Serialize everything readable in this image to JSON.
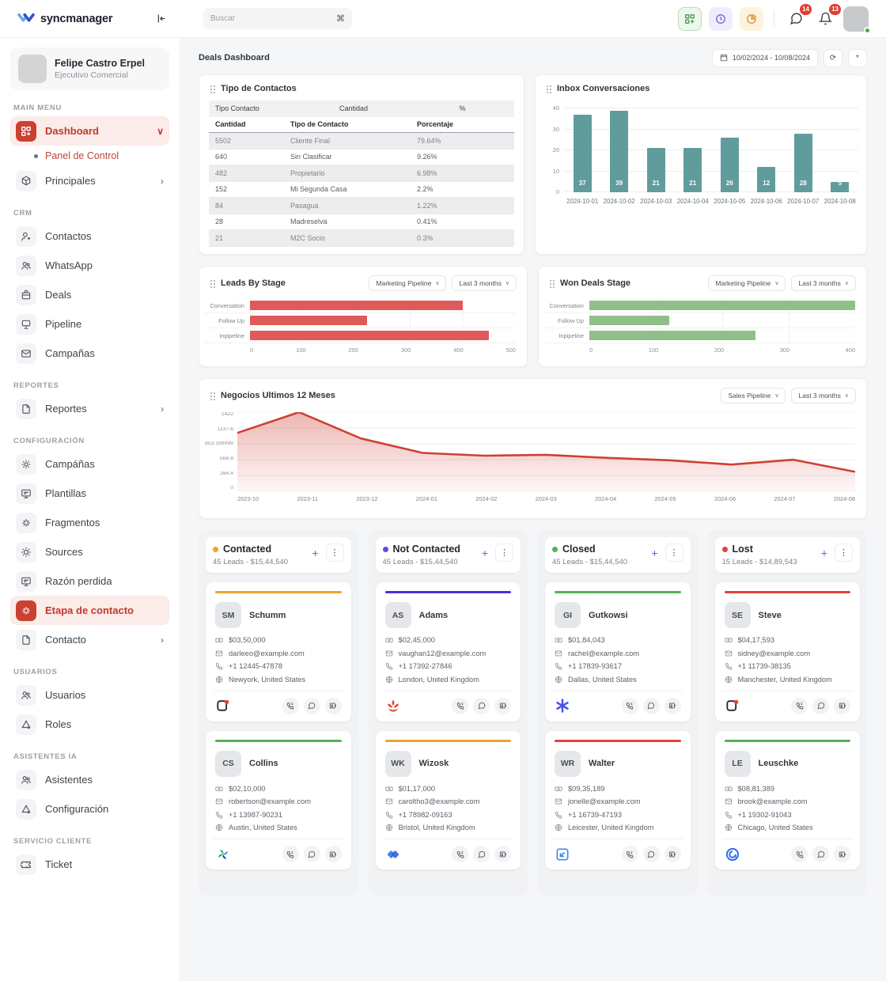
{
  "brand": {
    "name": "syncmanager"
  },
  "topbar": {
    "search": {
      "placeholder": "Buscar",
      "shortcut": "⌘"
    },
    "chat_badge": "14",
    "bell_badge": "13"
  },
  "user": {
    "name": "Felipe Castro Erpel",
    "role": "Ejecutivo Comercial"
  },
  "sidebar": {
    "sections": [
      {
        "label": "MAIN MENU",
        "items": [
          {
            "label": "Dashboard",
            "icon": "dashboard-icon",
            "active": true,
            "chevron": "∨"
          },
          {
            "label": "Panel de Control",
            "sub": true
          },
          {
            "label": "Principales",
            "icon": "cube-icon",
            "chevron": "›"
          }
        ]
      },
      {
        "label": "CRM",
        "items": [
          {
            "label": "Contactos",
            "icon": "user-plus-icon"
          },
          {
            "label": "WhatsApp",
            "icon": "users-icon"
          },
          {
            "label": "Deals",
            "icon": "deals-icon"
          },
          {
            "label": "Pipeline",
            "icon": "pipeline-icon"
          },
          {
            "label": "Campañas",
            "icon": "mail-icon"
          }
        ]
      },
      {
        "label": "REPORTES",
        "items": [
          {
            "label": "Reportes",
            "icon": "file-icon",
            "chevron": "›"
          }
        ]
      },
      {
        "label": "CONFIGURACIÓN",
        "items": [
          {
            "label": "Campáñas",
            "icon": "spark-icon"
          },
          {
            "label": "Plantillas",
            "icon": "template-icon"
          },
          {
            "label": "Fragmentos",
            "icon": "fragments-icon"
          },
          {
            "label": "Sources",
            "icon": "source-icon"
          },
          {
            "label": "Razón perdida",
            "icon": "template-icon"
          },
          {
            "label": "Etapa de contacto",
            "icon": "fragments-icon",
            "active": true
          },
          {
            "label": "Contacto",
            "icon": "file-icon",
            "chevron": "›"
          }
        ]
      },
      {
        "label": "USUARIOS",
        "items": [
          {
            "label": "Usuarios",
            "icon": "users-icon"
          },
          {
            "label": "Roles",
            "icon": "roles-icon"
          }
        ]
      },
      {
        "label": "ASISTENTES IA",
        "items": [
          {
            "label": "Asistentes",
            "icon": "users-icon"
          },
          {
            "label": "Configuración",
            "icon": "roles-icon"
          }
        ]
      },
      {
        "label": "SERVICIO CLIENTE",
        "items": [
          {
            "label": "Ticket",
            "icon": "ticket-icon"
          }
        ]
      }
    ]
  },
  "page": {
    "title": "Deals Dashboard",
    "date_range": "10/02/2024 - 10/08/2024",
    "refresh_glyph": "⟳",
    "extra_glyph": "*"
  },
  "contact_types": {
    "title": "Tipo de Contactos",
    "outer_headers": [
      "Tipo Contacto",
      "Cantidad",
      "%"
    ],
    "headers": [
      "Cantidad",
      "Tipo de Contacto",
      "Porcentaje"
    ],
    "rows": [
      [
        "5502",
        "Cliente Final",
        "79.64%"
      ],
      [
        "640",
        "Sin Clasificar",
        "9.26%"
      ],
      [
        "482",
        "Propietario",
        "6.98%"
      ],
      [
        "152",
        "Mi Segunda Casa",
        "2.2%"
      ],
      [
        "84",
        "Pasagua",
        "1.22%"
      ],
      [
        "28",
        "Madreselva",
        "0.41%"
      ],
      [
        "21",
        "M2C Socio",
        "0.3%"
      ]
    ]
  },
  "chart_data": [
    {
      "id": "inbox",
      "type": "bar",
      "title": "Inbox Conversaciones",
      "categories": [
        "2024-10-01",
        "2024-10-02",
        "2024-10-03",
        "2024-10-04",
        "2024-10-05",
        "2024-10-06",
        "2024-10-07",
        "2024-10-08"
      ],
      "values": [
        37,
        39,
        21,
        21,
        26,
        12,
        28,
        5
      ],
      "ylim": [
        0,
        40
      ],
      "yticks": [
        0,
        10,
        20,
        30,
        40
      ],
      "color": "#619c9d",
      "grid": true,
      "legend": "none"
    },
    {
      "id": "leads",
      "type": "bar",
      "orientation": "horizontal",
      "title": "Leads By Stage",
      "filters": [
        "Marketing Pipeline",
        "Last 3 months"
      ],
      "categories": [
        "Conversation",
        "Follow Up",
        "Inpipeline"
      ],
      "values": [
        400,
        220,
        450
      ],
      "xlim": [
        0,
        500
      ],
      "xticks": [
        0,
        100,
        200,
        300,
        400,
        500
      ],
      "color": "#e05a5a",
      "grid": true,
      "legend": "none"
    },
    {
      "id": "won",
      "type": "bar",
      "orientation": "horizontal",
      "title": "Won Deals Stage",
      "filters": [
        "Marketing Pipeline",
        "Last 3 months"
      ],
      "categories": [
        "Conversation",
        "Follow Up",
        "Inpipeline"
      ],
      "values": [
        400,
        120,
        250
      ],
      "xlim": [
        0,
        400
      ],
      "xticks": [
        0,
        100,
        200,
        300,
        400
      ],
      "color": "#90bf89",
      "grid": true,
      "legend": "none"
    },
    {
      "id": "negocios",
      "type": "area",
      "title": "Negocios Ultimos 12 Meses",
      "filters": [
        "Sales Pipeline",
        "Last 3 months"
      ],
      "x": [
        "2023-10",
        "2023-11",
        "2023-12",
        "2024-01",
        "2024-02",
        "2024-03",
        "2024-04",
        "2024-05",
        "2024-06",
        "2024-07",
        "2024-08"
      ],
      "values": [
        1050,
        1422,
        950,
        690,
        640,
        655,
        600,
        558,
        480,
        568,
        350
      ],
      "ylim": [
        0,
        1422
      ],
      "ytick_labels_top_to_bottom": [
        "1422",
        "1137.6",
        "853.1999999999999",
        "568.8",
        "284.4",
        "0"
      ],
      "color": "#cf4033",
      "grid": true,
      "legend": "none"
    }
  ],
  "kanban": {
    "add_label": "+",
    "menu_label": "⋮",
    "columns": [
      {
        "name": "Contacted",
        "dot_color": "#efa32f",
        "summary": "45 Leads - $15,44,540",
        "cards": [
          {
            "bar_color": "#efa32f",
            "initials": "SM",
            "name": "Schumm",
            "amount": "$03,50,000",
            "email": "darleeo@example.com",
            "phone": "+1 12445-47878",
            "location": "Newyork, United States",
            "brand_icon": "copy-red-dot-icon"
          },
          {
            "bar_color": "#54b158",
            "initials": "CS",
            "name": "Collins",
            "amount": "$02,10,000",
            "email": "robertson@example.com",
            "phone": "+1 13987-90231",
            "location": "Austin, United States",
            "brand_icon": "pinwheel-icon"
          }
        ]
      },
      {
        "name": "Not Contacted",
        "dot_color": "#5a4fe0",
        "summary": "45 Leads - $15,44,540",
        "cards": [
          {
            "bar_color": "#4b2ee3",
            "initials": "AS",
            "name": "Adams",
            "amount": "$02,45,000",
            "email": "vaughan12@example.com",
            "phone": "+1 17392-27846",
            "location": "London, United Kingdom",
            "brand_icon": "red-lotus-icon"
          },
          {
            "bar_color": "#efa32f",
            "initials": "WK",
            "name": "Wizosk",
            "amount": "$01,17,000",
            "email": "caroltho3@example.com",
            "phone": "+1 78982-09163",
            "location": "Bristol, United Kingdom",
            "brand_icon": "blue-diamond-icon"
          }
        ]
      },
      {
        "name": "Closed",
        "dot_color": "#54b158",
        "summary": "45 Leads - $15,44,540",
        "cards": [
          {
            "bar_color": "#54b158",
            "initials": "GI",
            "name": "Gutkowsi",
            "amount": "$01,84,043",
            "email": "rachel@example.com",
            "phone": "+1 17839-93617",
            "location": "Dallas, United States",
            "brand_icon": "blue-asterisk-icon"
          },
          {
            "bar_color": "#e2413c",
            "initials": "WR",
            "name": "Walter",
            "amount": "$09,35,189",
            "email": "jonelle@example.com",
            "phone": "+1 16739-47193",
            "location": "Leicester, United Kingdom",
            "brand_icon": "blue-inbox-icon"
          }
        ]
      },
      {
        "name": "Lost",
        "dot_color": "#e2413c",
        "summary": "15 Leads - $14,89,543",
        "cards": [
          {
            "bar_color": "#e2413c",
            "initials": "SE",
            "name": "Steve",
            "amount": "$04,17,593",
            "email": "sidney@example.com",
            "phone": "+1 11739-38135",
            "location": "Manchester, United Kingdom",
            "brand_icon": "copy-red-dot-icon"
          },
          {
            "bar_color": "#54b158",
            "initials": "LE",
            "name": "Leuschke",
            "amount": "$08,81,389",
            "email": "brook@example.com",
            "phone": "+1 19302-91043",
            "location": "Chicago, United States",
            "brand_icon": "blue-spiral-icon"
          }
        ]
      }
    ]
  }
}
